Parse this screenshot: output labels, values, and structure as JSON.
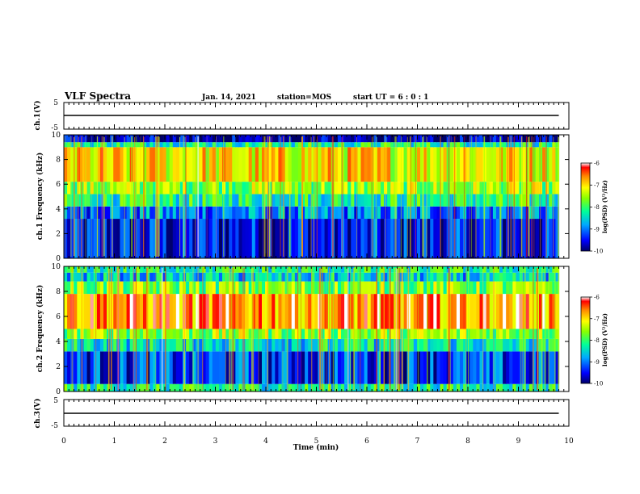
{
  "header": {
    "title": "VLF Spectra",
    "date": "Jan. 14, 2021",
    "station": "station=MOS",
    "start_ut": "start UT =  6 : 0 : 1"
  },
  "chart_data": [
    {
      "type": "line",
      "panel": "ch1-waveform",
      "ylabel": "ch.1(V)",
      "yticklabels": [
        "5",
        "-5"
      ],
      "ylim": [
        -5,
        5
      ],
      "xlim": [
        0,
        10
      ],
      "series": [
        {
          "x": [
            0,
            9.8
          ],
          "values": [
            0,
            0
          ]
        }
      ]
    },
    {
      "type": "heatmap",
      "panel": "ch1-spectrogram",
      "ylabel": "ch.1 Frequency (kHz)",
      "ylim": [
        0,
        10
      ],
      "xlim": [
        0,
        9.8
      ],
      "yticklabels": [
        "0",
        "2",
        "4",
        "6",
        "8",
        "10"
      ],
      "bands": [
        {
          "from": 0,
          "to": 3.2,
          "level": -9.5
        },
        {
          "from": 3.2,
          "to": 4.2,
          "level": -9
        },
        {
          "from": 4.2,
          "to": 5.2,
          "level": -8.2
        },
        {
          "from": 5.2,
          "to": 6.2,
          "level": -7.6
        },
        {
          "from": 6.2,
          "to": 9.0,
          "level": -7.1
        },
        {
          "from": 9.0,
          "to": 9.4,
          "level": -8.2
        },
        {
          "from": 9.4,
          "to": 10,
          "level": -9.8
        }
      ],
      "colorbar": {
        "label": "log(PSD) (V²/Hz)",
        "ticks": [
          "-6",
          "-7",
          "-8",
          "-9",
          "-10"
        ],
        "range": [
          -10,
          -6
        ]
      }
    },
    {
      "type": "heatmap",
      "panel": "ch2-spectrogram",
      "ylabel": "ch.2 Frequency (kHz)",
      "ylim": [
        0,
        10
      ],
      "xlim": [
        0,
        9.8
      ],
      "yticklabels": [
        "0",
        "2",
        "4",
        "6",
        "8",
        "10"
      ],
      "bands": [
        {
          "from": 0,
          "to": 0.6,
          "level": -8.2
        },
        {
          "from": 0.6,
          "to": 3.2,
          "level": -9.3
        },
        {
          "from": 3.2,
          "to": 4.2,
          "level": -8.4
        },
        {
          "from": 4.2,
          "to": 5.0,
          "level": -7.6
        },
        {
          "from": 5.0,
          "to": 7.8,
          "level": -6.6
        },
        {
          "from": 7.8,
          "to": 8.8,
          "level": -7.7
        },
        {
          "from": 8.8,
          "to": 9.5,
          "level": -8.6
        },
        {
          "from": 9.5,
          "to": 10,
          "level": -8.2
        }
      ],
      "colorbar": {
        "label": "log(PSD) (V²/Hz)",
        "ticks": [
          "-6",
          "-7",
          "-8",
          "-9",
          "-10"
        ],
        "range": [
          -10,
          -6
        ]
      }
    },
    {
      "type": "line",
      "panel": "ch3-waveform",
      "ylabel": "ch.3(V)",
      "yticklabels": [
        "5",
        "-5"
      ],
      "ylim": [
        -5,
        5
      ],
      "xlim": [
        0,
        10
      ],
      "xlabel": "Time (min)",
      "xticklabels": [
        "0",
        "1",
        "2",
        "3",
        "4",
        "5",
        "6",
        "7",
        "8",
        "9",
        "10"
      ],
      "series": [
        {
          "x": [
            0,
            9.8
          ],
          "values": [
            0,
            0
          ]
        }
      ]
    }
  ]
}
